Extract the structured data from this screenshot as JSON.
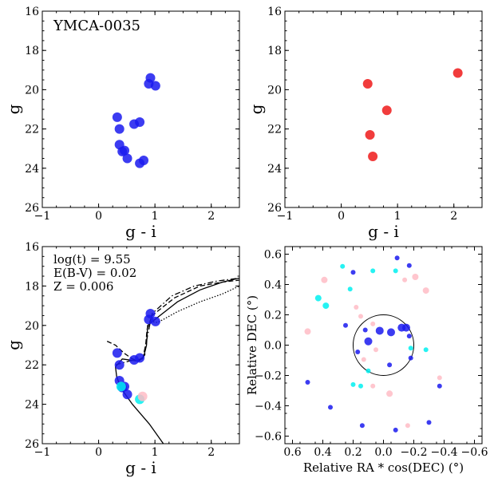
{
  "chart_data": [
    {
      "id": "cmd-members",
      "type": "scatter",
      "title": "YMCA-0035",
      "xlabel": "g - i",
      "ylabel": "g",
      "xlim": [
        -1,
        2.5
      ],
      "ylim": [
        26,
        16
      ],
      "xticks": [
        -1,
        0,
        1,
        2
      ],
      "yticks": [
        16,
        18,
        20,
        22,
        24,
        26
      ],
      "xtick_labels": [
        "−1",
        "0",
        "1",
        "2"
      ],
      "ytick_labels": [
        "16",
        "18",
        "20",
        "22",
        "24",
        "26"
      ],
      "series": [
        {
          "name": "members",
          "color": "#1a1aee",
          "x": [
            0.92,
            1.01,
            0.89,
            0.33,
            0.37,
            0.63,
            0.73,
            0.37,
            0.42,
            0.46,
            0.51,
            0.8,
            0.73
          ],
          "y": [
            19.4,
            19.8,
            19.7,
            21.4,
            22.0,
            21.75,
            21.65,
            22.8,
            23.15,
            23.1,
            23.5,
            23.6,
            23.75
          ]
        }
      ]
    },
    {
      "id": "cmd-field",
      "type": "scatter",
      "title": "",
      "xlabel": "g - i",
      "ylabel": "g",
      "xlim": [
        -1,
        2.5
      ],
      "ylim": [
        26,
        16
      ],
      "xticks": [
        -1,
        0,
        1,
        2
      ],
      "yticks": [
        16,
        18,
        20,
        22,
        24,
        26
      ],
      "xtick_labels": [
        "−1",
        "0",
        "1",
        "2"
      ],
      "ytick_labels": [
        "16",
        "18",
        "20",
        "22",
        "24",
        "26"
      ],
      "series": [
        {
          "name": "field",
          "color": "#ee1a1a",
          "x": [
            2.07,
            0.47,
            0.81,
            0.51,
            0.56
          ],
          "y": [
            19.15,
            19.7,
            21.05,
            22.3,
            23.4
          ]
        }
      ]
    },
    {
      "id": "cmd-isochrone",
      "type": "line",
      "title": "",
      "annotations": [
        "log(t) = 9.55",
        "E(B-V) = 0.02",
        "Z = 0.006"
      ],
      "xlabel": "g - i",
      "ylabel": "g",
      "xlim": [
        -1,
        2.5
      ],
      "ylim": [
        26,
        16
      ],
      "xticks": [
        -1,
        0,
        1,
        2
      ],
      "yticks": [
        16,
        18,
        20,
        22,
        24,
        26
      ],
      "xtick_labels": [
        "−1",
        "0",
        "1",
        "2"
      ],
      "ytick_labels": [
        "16",
        "18",
        "20",
        "22",
        "24",
        "26"
      ],
      "isochrones": [
        {
          "name": "iso-solid",
          "style": "solid",
          "x": [
            1.15,
            0.9,
            0.6,
            0.4,
            0.32,
            0.3,
            0.42,
            0.68,
            0.8,
            0.85,
            0.87,
            1.0,
            1.4,
            1.8,
            2.2,
            2.5
          ],
          "y": [
            26.0,
            25.0,
            24.0,
            23.2,
            22.6,
            22.1,
            21.7,
            21.8,
            21.6,
            21.0,
            20.0,
            19.7,
            18.8,
            18.2,
            17.8,
            17.6
          ]
        },
        {
          "name": "iso-dashed",
          "style": "dashed",
          "x": [
            0.15,
            0.3,
            0.45,
            0.6,
            0.72,
            0.82,
            0.86,
            0.95,
            1.35,
            1.8,
            2.2,
            2.5
          ],
          "y": [
            20.8,
            21.0,
            21.4,
            21.7,
            21.8,
            21.5,
            20.2,
            19.5,
            18.6,
            18.0,
            17.8,
            17.7
          ]
        },
        {
          "name": "iso-dotted",
          "style": "dotted",
          "x": [
            0.92,
            1.05,
            1.4,
            1.8,
            2.2,
            2.5
          ],
          "y": [
            19.8,
            19.85,
            19.3,
            18.8,
            18.4,
            18.0
          ]
        },
        {
          "name": "iso-dashdot",
          "style": "dashdot",
          "x": [
            0.3,
            0.55,
            0.78,
            0.82,
            0.95,
            1.3,
            1.7,
            2.1,
            2.5
          ],
          "y": [
            22.0,
            21.8,
            21.7,
            21.2,
            19.4,
            18.5,
            18.0,
            17.75,
            17.6
          ]
        }
      ],
      "series": [
        {
          "name": "members",
          "color": "#1a1aee",
          "x": [
            0.92,
            1.01,
            0.89,
            0.33,
            0.37,
            0.63,
            0.73,
            0.37,
            0.42,
            0.46,
            0.51
          ],
          "y": [
            19.4,
            19.8,
            19.7,
            21.4,
            22.0,
            21.75,
            21.65,
            22.8,
            23.15,
            23.1,
            23.5
          ]
        },
        {
          "name": "cyan-stars",
          "color": "#00f0f0",
          "x": [
            0.73,
            0.4
          ],
          "y": [
            23.75,
            23.1
          ]
        },
        {
          "name": "pink-stars",
          "color": "#ffbcc6",
          "x": [
            0.78
          ],
          "y": [
            23.6
          ]
        }
      ]
    },
    {
      "id": "sky-map",
      "type": "scatter",
      "title": "",
      "xlabel": "Relative RA * cos(DEC) (°)",
      "ylabel": "Relative DEC (°)",
      "xlim": [
        0.65,
        -0.65
      ],
      "ylim": [
        -0.65,
        0.65
      ],
      "xticks": [
        0.6,
        0.4,
        0.2,
        0.0,
        -0.2,
        -0.4,
        -0.6
      ],
      "yticks": [
        0.6,
        0.4,
        0.2,
        0.0,
        -0.2,
        -0.4,
        -0.6
      ],
      "xtick_labels": [
        "0.6",
        "0.4",
        "0.2",
        "0.0",
        "−0.2",
        "−0.4",
        "−0.6"
      ],
      "ytick_labels": [
        "0.6",
        "0.4",
        "0.2",
        "0.0",
        "−0.2",
        "−0.4",
        "−0.6"
      ],
      "circle_radius": 0.2,
      "series": [
        {
          "name": "blue",
          "color": "#1a1aee",
          "x": [
            0.1,
            0.025,
            -0.05,
            -0.15,
            -0.12,
            0.17,
            0.25,
            -0.09,
            -0.17,
            -0.04,
            0.5,
            0.2,
            0.14,
            -0.08,
            -0.3,
            -0.37,
            0.35,
            -0.17,
            0.12,
            -0.18
          ],
          "y": [
            0.025,
            0.095,
            0.085,
            0.115,
            0.115,
            -0.045,
            0.13,
            0.575,
            0.525,
            -0.13,
            -0.245,
            0.48,
            -0.53,
            -0.56,
            -0.51,
            -0.27,
            -0.41,
            0.06,
            0.1,
            -0.085
          ]
        },
        {
          "name": "cyan",
          "color": "#00f0f0",
          "x": [
            0.43,
            0.38,
            0.27,
            0.07,
            0.2,
            -0.08,
            -0.18,
            -0.28,
            0.1,
            0.22,
            0.15
          ],
          "y": [
            0.31,
            0.26,
            0.52,
            0.49,
            -0.26,
            0.49,
            -0.02,
            -0.03,
            -0.17,
            0.37,
            -0.27
          ]
        },
        {
          "name": "pink",
          "color": "#ffbcc6",
          "x": [
            0.39,
            0.5,
            -0.14,
            0.15,
            0.18,
            0.07,
            -0.21,
            -0.28,
            0.05,
            0.13,
            -0.04,
            -0.37,
            -0.16,
            0.07
          ],
          "y": [
            0.43,
            0.09,
            0.43,
            0.19,
            0.25,
            -0.27,
            0.45,
            0.36,
            -0.03,
            -0.095,
            -0.32,
            -0.215,
            -0.53,
            0.14
          ]
        }
      ]
    }
  ]
}
